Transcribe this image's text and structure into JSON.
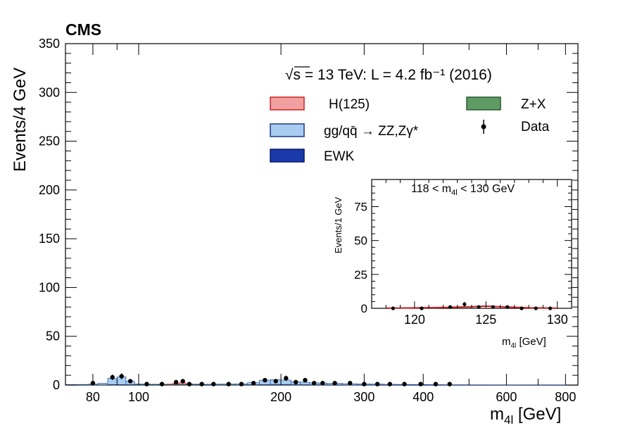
{
  "chart_data": {
    "type": "bar",
    "experiment_label": "CMS",
    "header_sqrt": "√s",
    "header_rest": " = 13 TeV: L = 4.2 fb⁻¹ (2016)",
    "xlabel": "m",
    "xlabel_sub": "4l",
    "xlabel_unit": " [GeV]",
    "ylabel": "Events/4 GeV",
    "x_scale": "log",
    "xlim": [
      70,
      850
    ],
    "ylim": [
      0,
      350
    ],
    "x_ticks": [
      80,
      100,
      200,
      300,
      400,
      600,
      800
    ],
    "y_ticks": [
      0,
      50,
      100,
      150,
      200,
      250,
      300,
      350
    ],
    "legend": [
      {
        "label": "H(125)",
        "color": "#f0a0a0",
        "edge": "#cc2222"
      },
      {
        "label": "Z+X",
        "color": "#5d9a64",
        "edge": "#2a5a2e"
      },
      {
        "label": "gg/qq̄ → ZZ,Zγ*",
        "color": "#a8ccf0",
        "edge": "#1a3a8a"
      },
      {
        "label": "Data",
        "color": "#000000",
        "edge": "#000000"
      },
      {
        "label": "EWK",
        "color": "#1a3aaa",
        "edge": "#0a1a6a"
      }
    ],
    "stack": {
      "bins_lo": [
        70,
        74,
        78,
        82,
        86,
        90,
        94,
        98,
        102,
        106,
        110,
        114,
        118,
        122,
        126,
        130,
        134,
        138,
        142,
        146,
        150,
        160,
        170,
        180,
        190,
        200,
        210,
        220,
        230,
        240,
        250,
        270,
        290,
        310,
        330,
        350,
        380,
        410,
        440,
        470,
        500,
        550,
        600,
        650,
        700,
        750,
        800
      ],
      "bins_hi": [
        74,
        78,
        82,
        86,
        90,
        94,
        98,
        102,
        106,
        110,
        114,
        118,
        122,
        126,
        130,
        134,
        138,
        142,
        146,
        150,
        160,
        170,
        180,
        190,
        200,
        210,
        220,
        230,
        240,
        250,
        270,
        290,
        310,
        330,
        350,
        380,
        410,
        440,
        470,
        500,
        550,
        600,
        650,
        700,
        750,
        800,
        850
      ],
      "zz": [
        0.2,
        0.3,
        0.6,
        1.5,
        6.5,
        8.0,
        3.5,
        0.8,
        0.5,
        0.4,
        0.4,
        0.4,
        0.5,
        0.5,
        0.5,
        0.5,
        0.5,
        0.5,
        0.5,
        0.6,
        0.8,
        1.0,
        2.0,
        4.5,
        5.0,
        4.5,
        3.0,
        2.5,
        2.0,
        1.8,
        1.5,
        1.2,
        1.0,
        0.8,
        0.6,
        0.5,
        0.4,
        0.3,
        0.2,
        0.2,
        0.15,
        0.1,
        0.08,
        0.05,
        0.04,
        0.03,
        0.02
      ],
      "ewk": [
        0.0,
        0.0,
        0.0,
        0.0,
        0.1,
        0.1,
        0.1,
        0.0,
        0.0,
        0.0,
        0.0,
        0.0,
        0.0,
        0.0,
        0.0,
        0.0,
        0.0,
        0.0,
        0.0,
        0.0,
        0.0,
        0.0,
        0.1,
        0.2,
        0.3,
        0.3,
        0.2,
        0.2,
        0.1,
        0.1,
        0.1,
        0.1,
        0.1,
        0.1,
        0.05,
        0.05,
        0.05,
        0.05,
        0.03,
        0.03,
        0.02,
        0.02,
        0.01,
        0.01,
        0.01,
        0.01,
        0.01
      ],
      "zx": [
        0.3,
        0.3,
        0.3,
        0.3,
        0.4,
        0.4,
        0.4,
        0.4,
        0.4,
        0.4,
        0.4,
        0.4,
        0.4,
        0.4,
        0.4,
        0.4,
        0.4,
        0.3,
        0.3,
        0.3,
        0.3,
        0.3,
        0.3,
        0.3,
        0.3,
        0.3,
        0.2,
        0.2,
        0.2,
        0.2,
        0.2,
        0.1,
        0.1,
        0.1,
        0.1,
        0.1,
        0.05,
        0.05,
        0.05,
        0.05,
        0.02,
        0.02,
        0.02,
        0.01,
        0.01,
        0.01,
        0.01
      ],
      "higgs": [
        0,
        0,
        0,
        0,
        0,
        0,
        0,
        0,
        0,
        0,
        0,
        0.2,
        0.8,
        1.5,
        0.3,
        0,
        0,
        0,
        0,
        0,
        0,
        0,
        0,
        0,
        0,
        0,
        0,
        0,
        0,
        0,
        0,
        0,
        0,
        0,
        0,
        0,
        0,
        0,
        0,
        0,
        0,
        0,
        0,
        0,
        0,
        0,
        0
      ]
    },
    "data_points": [
      {
        "x": 80,
        "y": 2
      },
      {
        "x": 88,
        "y": 8
      },
      {
        "x": 92,
        "y": 9
      },
      {
        "x": 96,
        "y": 4
      },
      {
        "x": 104,
        "y": 1
      },
      {
        "x": 112,
        "y": 1
      },
      {
        "x": 120,
        "y": 3
      },
      {
        "x": 124,
        "y": 4
      },
      {
        "x": 128,
        "y": 1
      },
      {
        "x": 136,
        "y": 1
      },
      {
        "x": 144,
        "y": 1
      },
      {
        "x": 155,
        "y": 1
      },
      {
        "x": 165,
        "y": 1
      },
      {
        "x": 175,
        "y": 2
      },
      {
        "x": 185,
        "y": 5
      },
      {
        "x": 195,
        "y": 4
      },
      {
        "x": 205,
        "y": 7
      },
      {
        "x": 215,
        "y": 3
      },
      {
        "x": 225,
        "y": 5
      },
      {
        "x": 235,
        "y": 2
      },
      {
        "x": 245,
        "y": 2
      },
      {
        "x": 260,
        "y": 2
      },
      {
        "x": 280,
        "y": 2
      },
      {
        "x": 300,
        "y": 1
      },
      {
        "x": 320,
        "y": 1
      },
      {
        "x": 340,
        "y": 1
      },
      {
        "x": 365,
        "y": 1
      },
      {
        "x": 395,
        "y": 1
      },
      {
        "x": 425,
        "y": 1
      },
      {
        "x": 455,
        "y": 1
      }
    ]
  },
  "inset": {
    "label": "118 < m",
    "label_sub": "4l",
    "label_rest": " < 130 GeV",
    "ylabel": "Events/1 GeV",
    "xlabel": "m",
    "xlabel_sub": "4l",
    "xlabel_unit": " [GeV]",
    "xlim": [
      117,
      131
    ],
    "ylim": [
      0,
      95
    ],
    "x_ticks": [
      120,
      125,
      130
    ],
    "y_ticks": [
      0,
      25,
      50,
      75
    ],
    "higgs_curve": [
      {
        "x": 118,
        "y": 0.1
      },
      {
        "x": 120,
        "y": 0.3
      },
      {
        "x": 122,
        "y": 0.6
      },
      {
        "x": 124,
        "y": 1.2
      },
      {
        "x": 125,
        "y": 1.6
      },
      {
        "x": 126,
        "y": 1.2
      },
      {
        "x": 128,
        "y": 0.4
      },
      {
        "x": 130,
        "y": 0.1
      }
    ],
    "data_points": [
      {
        "x": 118.5,
        "y": 0
      },
      {
        "x": 120.5,
        "y": 0
      },
      {
        "x": 122.5,
        "y": 1
      },
      {
        "x": 123.5,
        "y": 3
      },
      {
        "x": 124.5,
        "y": 1
      },
      {
        "x": 125.5,
        "y": 1
      },
      {
        "x": 126.5,
        "y": 1
      },
      {
        "x": 127.5,
        "y": 0
      },
      {
        "x": 128.5,
        "y": 0
      },
      {
        "x": 129.5,
        "y": 0
      }
    ]
  }
}
